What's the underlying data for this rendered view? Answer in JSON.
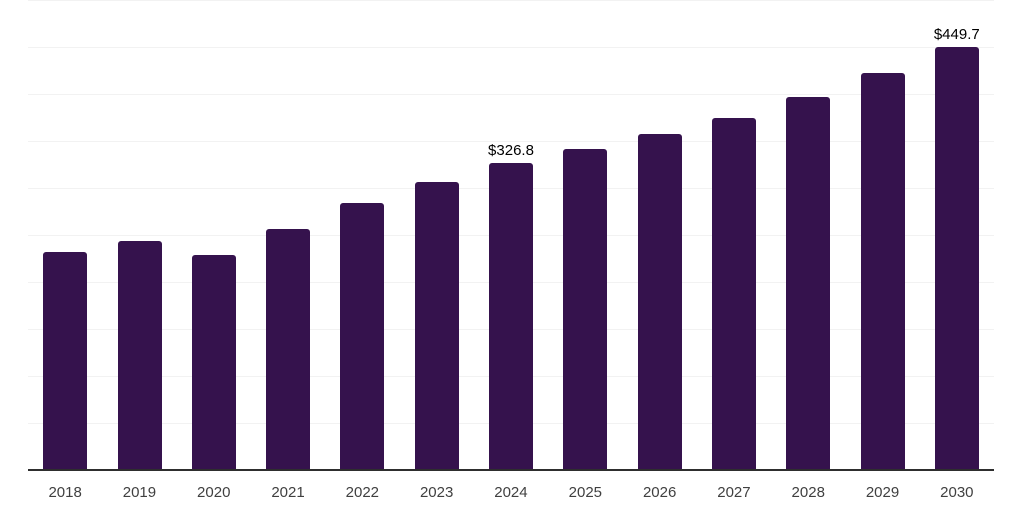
{
  "chart_data": {
    "type": "bar",
    "title": "",
    "xlabel": "",
    "ylabel": "",
    "categories": [
      "2018",
      "2019",
      "2020",
      "2021",
      "2022",
      "2023",
      "2024",
      "2025",
      "2026",
      "2027",
      "2028",
      "2029",
      "2030"
    ],
    "values": [
      231.9,
      243.3,
      229.0,
      256.9,
      284.6,
      306.7,
      326.8,
      341.2,
      357.4,
      374.8,
      397.1,
      422.0,
      449.7
    ],
    "labeled_points": [
      {
        "category": "2024",
        "index": 6,
        "label": "$326.8"
      },
      {
        "category": "2030",
        "index": 12,
        "label": "$449.7"
      }
    ],
    "ylim": [
      0,
      500
    ],
    "grid_step": 50,
    "grid": "horizontal",
    "y_axis_tick_labels_visible": false,
    "legend_position": "none",
    "colors": {
      "bar": "#35124d",
      "gridline": "#f2f2f2",
      "axis_line": "#2e2e2e",
      "tick_label": "#404040",
      "data_label": "#000000",
      "background": "#ffffff"
    }
  }
}
